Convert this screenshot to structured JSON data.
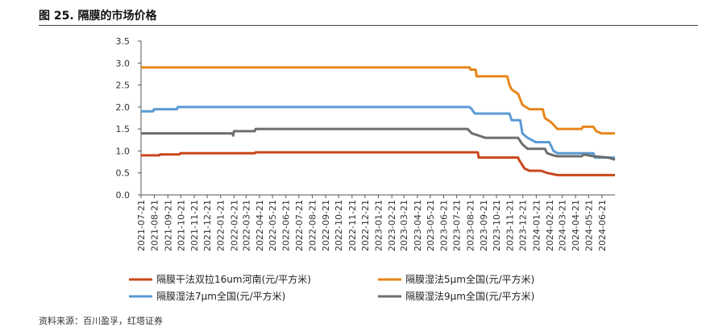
{
  "figure": {
    "title": "图 25. 隔膜的市场价格",
    "source": "资料来源：百川盈孚，红塔证券"
  },
  "chart_data": {
    "type": "line",
    "title": "",
    "xlabel": "",
    "ylabel": "",
    "ylim": [
      0,
      3.5
    ],
    "yticks": [
      "0.0",
      "0.5",
      "1.0",
      "1.5",
      "2.0",
      "2.5",
      "3.0",
      "3.5"
    ],
    "x_ticks": [
      "2021-07-21",
      "2021-08-21",
      "2021-09-21",
      "2021-10-21",
      "2021-11-21",
      "2021-12-21",
      "2022-01-21",
      "2022-02-21",
      "2022-03-21",
      "2022-04-21",
      "2022-05-21",
      "2022-06-21",
      "2022-07-21",
      "2022-08-21",
      "2022-09-21",
      "2022-10-21",
      "2022-11-21",
      "2022-12-21",
      "2023-01-21",
      "2023-02-21",
      "2023-03-21",
      "2023-04-21",
      "2023-05-21",
      "2023-06-21",
      "2023-07-21",
      "2023-08-21",
      "2023-09-21",
      "2023-10-21",
      "2023-11-21",
      "2023-12-21",
      "2024-01-21",
      "2024-02-21",
      "2024-03-21",
      "2024-04-21",
      "2024-05-21",
      "2024-06-21"
    ],
    "x_range": [
      "2021-07-21",
      "2024-07-21"
    ],
    "grid": false,
    "legend_position": "bottom",
    "series": [
      {
        "name": "隔膜干法双拉16um河南(元/平方米)",
        "color": "#C9471C",
        "points": [
          [
            "2021-07-21",
            0.9
          ],
          [
            "2021-09-01",
            0.9
          ],
          [
            "2021-09-03",
            0.92
          ],
          [
            "2021-10-18",
            0.92
          ],
          [
            "2021-10-20",
            0.95
          ],
          [
            "2022-04-10",
            0.95
          ],
          [
            "2022-04-12",
            0.97
          ],
          [
            "2023-09-08",
            0.97
          ],
          [
            "2023-09-10",
            0.85
          ],
          [
            "2023-12-10",
            0.85
          ],
          [
            "2023-12-12",
            0.8
          ],
          [
            "2023-12-25",
            0.6
          ],
          [
            "2024-01-05",
            0.55
          ],
          [
            "2024-02-01",
            0.55
          ],
          [
            "2024-02-15",
            0.5
          ],
          [
            "2024-03-10",
            0.45
          ],
          [
            "2024-07-21",
            0.45
          ]
        ]
      },
      {
        "name": "隔膜湿法5μm全国(元/平方米)",
        "color": "#E8861B",
        "points": [
          [
            "2021-07-21",
            2.9
          ],
          [
            "2023-08-20",
            2.9
          ],
          [
            "2023-08-22",
            2.85
          ],
          [
            "2023-09-03",
            2.85
          ],
          [
            "2023-09-05",
            2.7
          ],
          [
            "2023-11-15",
            2.7
          ],
          [
            "2023-11-20",
            2.5
          ],
          [
            "2023-11-25",
            2.4
          ],
          [
            "2023-12-10",
            2.3
          ],
          [
            "2023-12-20",
            2.05
          ],
          [
            "2024-01-05",
            1.95
          ],
          [
            "2024-02-05",
            1.95
          ],
          [
            "2024-02-10",
            1.75
          ],
          [
            "2024-02-25",
            1.65
          ],
          [
            "2024-03-10",
            1.5
          ],
          [
            "2024-05-05",
            1.5
          ],
          [
            "2024-05-08",
            1.55
          ],
          [
            "2024-06-01",
            1.55
          ],
          [
            "2024-06-08",
            1.45
          ],
          [
            "2024-06-20",
            1.4
          ],
          [
            "2024-07-21",
            1.4
          ]
        ]
      },
      {
        "name": "隔膜湿法7μm全国(元/平方米)",
        "color": "#5B9BD5",
        "points": [
          [
            "2021-07-21",
            1.9
          ],
          [
            "2021-08-18",
            1.9
          ],
          [
            "2021-08-20",
            1.95
          ],
          [
            "2021-10-12",
            1.95
          ],
          [
            "2021-10-14",
            2.0
          ],
          [
            "2023-08-20",
            2.0
          ],
          [
            "2023-08-25",
            1.95
          ],
          [
            "2023-09-01",
            1.85
          ],
          [
            "2023-11-20",
            1.85
          ],
          [
            "2023-11-25",
            1.7
          ],
          [
            "2023-12-15",
            1.7
          ],
          [
            "2023-12-20",
            1.4
          ],
          [
            "2024-01-01",
            1.3
          ],
          [
            "2024-01-20",
            1.2
          ],
          [
            "2024-02-20",
            1.2
          ],
          [
            "2024-03-01",
            1.0
          ],
          [
            "2024-03-10",
            0.95
          ],
          [
            "2024-05-10",
            0.95
          ],
          [
            "2024-05-15",
            0.95
          ],
          [
            "2024-06-01",
            0.95
          ],
          [
            "2024-06-05",
            0.85
          ],
          [
            "2024-07-21",
            0.85
          ]
        ]
      },
      {
        "name": "隔膜湿法9μm全国(元/平方米)",
        "color": "#6E6E6E",
        "points": [
          [
            "2021-07-21",
            1.4
          ],
          [
            "2022-02-18",
            1.4
          ],
          [
            "2022-02-19",
            1.35
          ],
          [
            "2022-02-21",
            1.45
          ],
          [
            "2022-04-10",
            1.45
          ],
          [
            "2022-04-12",
            1.5
          ],
          [
            "2023-08-15",
            1.5
          ],
          [
            "2023-08-25",
            1.4
          ],
          [
            "2023-09-10",
            1.35
          ],
          [
            "2023-09-25",
            1.3
          ],
          [
            "2023-12-10",
            1.3
          ],
          [
            "2023-12-20",
            1.15
          ],
          [
            "2024-01-01",
            1.05
          ],
          [
            "2024-02-10",
            1.05
          ],
          [
            "2024-02-15",
            0.95
          ],
          [
            "2024-03-01",
            0.9
          ],
          [
            "2024-03-10",
            0.88
          ],
          [
            "2024-05-05",
            0.88
          ],
          [
            "2024-05-10",
            0.92
          ],
          [
            "2024-06-01",
            0.88
          ],
          [
            "2024-07-05",
            0.85
          ],
          [
            "2024-07-21",
            0.8
          ]
        ]
      }
    ]
  }
}
